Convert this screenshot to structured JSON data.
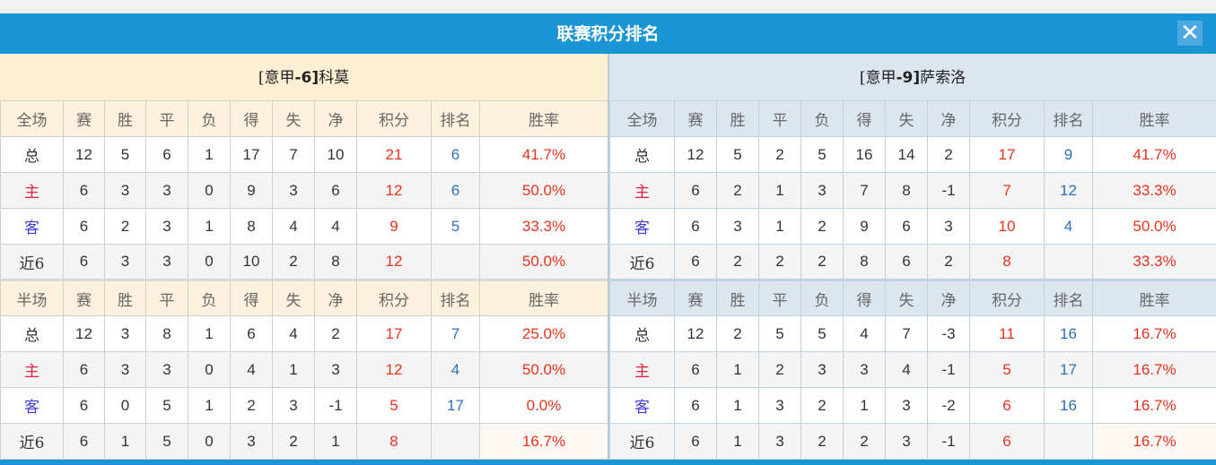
{
  "title": "联赛积分排名",
  "close_icon": "close-icon",
  "colors": {
    "header": "#1b96d5",
    "points": "#e8321e",
    "rank": "#2f70b8",
    "home": "#e0203a",
    "away": "#3c3cd8"
  },
  "teams": [
    {
      "prefix": "[意甲",
      "rank": "-6]",
      "name": "科莫",
      "full": {
        "header": [
          "全场",
          "赛",
          "胜",
          "平",
          "负",
          "得",
          "失",
          "净",
          "积分",
          "排名",
          "胜率"
        ],
        "rows": [
          [
            "总",
            "12",
            "5",
            "6",
            "1",
            "17",
            "7",
            "10",
            "21",
            "6",
            "41.7%"
          ],
          [
            "主",
            "6",
            "3",
            "3",
            "0",
            "9",
            "3",
            "6",
            "12",
            "6",
            "50.0%"
          ],
          [
            "客",
            "6",
            "2",
            "3",
            "1",
            "8",
            "4",
            "4",
            "9",
            "5",
            "33.3%"
          ],
          [
            "近6",
            "6",
            "3",
            "3",
            "0",
            "10",
            "2",
            "8",
            "12",
            "",
            "50.0%"
          ]
        ]
      },
      "half": {
        "header": [
          "半场",
          "赛",
          "胜",
          "平",
          "负",
          "得",
          "失",
          "净",
          "积分",
          "排名",
          "胜率"
        ],
        "rows": [
          [
            "总",
            "12",
            "3",
            "8",
            "1",
            "6",
            "4",
            "2",
            "17",
            "7",
            "25.0%"
          ],
          [
            "主",
            "6",
            "3",
            "3",
            "0",
            "4",
            "1",
            "3",
            "12",
            "4",
            "50.0%"
          ],
          [
            "客",
            "6",
            "0",
            "5",
            "1",
            "2",
            "3",
            "-1",
            "5",
            "17",
            "0.0%"
          ],
          [
            "近6",
            "6",
            "1",
            "5",
            "0",
            "3",
            "2",
            "1",
            "8",
            "",
            "16.7%"
          ]
        ]
      }
    },
    {
      "prefix": "[意甲",
      "rank": "-9]",
      "name": "萨索洛",
      "full": {
        "header": [
          "全场",
          "赛",
          "胜",
          "平",
          "负",
          "得",
          "失",
          "净",
          "积分",
          "排名",
          "胜率"
        ],
        "rows": [
          [
            "总",
            "12",
            "5",
            "2",
            "5",
            "16",
            "14",
            "2",
            "17",
            "9",
            "41.7%"
          ],
          [
            "主",
            "6",
            "2",
            "1",
            "3",
            "7",
            "8",
            "-1",
            "7",
            "12",
            "33.3%"
          ],
          [
            "客",
            "6",
            "3",
            "1",
            "2",
            "9",
            "6",
            "3",
            "10",
            "4",
            "50.0%"
          ],
          [
            "近6",
            "6",
            "2",
            "2",
            "2",
            "8",
            "6",
            "2",
            "8",
            "",
            "33.3%"
          ]
        ]
      },
      "half": {
        "header": [
          "半场",
          "赛",
          "胜",
          "平",
          "负",
          "得",
          "失",
          "净",
          "积分",
          "排名",
          "胜率"
        ],
        "rows": [
          [
            "总",
            "12",
            "2",
            "5",
            "5",
            "4",
            "7",
            "-3",
            "11",
            "16",
            "16.7%"
          ],
          [
            "主",
            "6",
            "1",
            "2",
            "3",
            "3",
            "4",
            "-1",
            "5",
            "17",
            "16.7%"
          ],
          [
            "客",
            "6",
            "1",
            "3",
            "2",
            "1",
            "3",
            "-2",
            "6",
            "16",
            "16.7%"
          ],
          [
            "近6",
            "6",
            "1",
            "3",
            "2",
            "2",
            "3",
            "-1",
            "6",
            "",
            "16.7%"
          ]
        ]
      }
    }
  ]
}
